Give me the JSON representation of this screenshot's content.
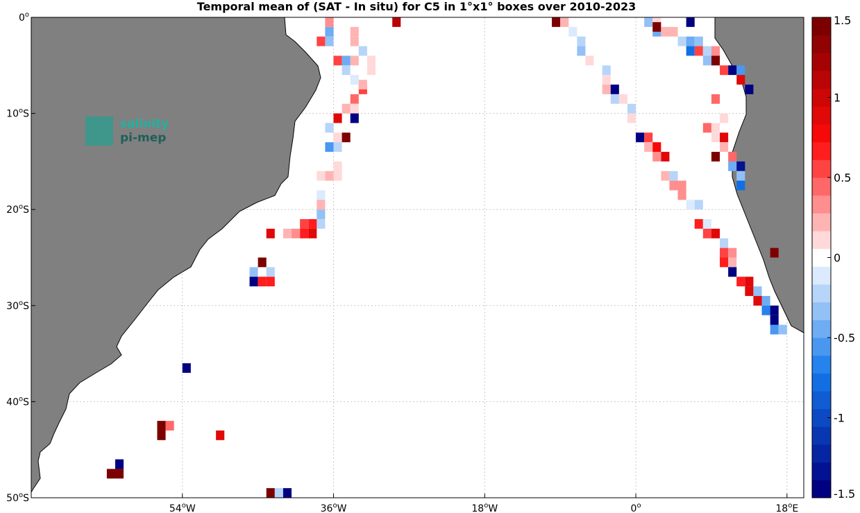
{
  "title": "Temporal mean of (SAT - In situ) for C5 in 1°x1° boxes over 2010-2023",
  "logo": {
    "line1": "salinity",
    "line2": "pi-mep"
  },
  "colors": {
    "land": "#808080",
    "ocean": "#ffffff",
    "grid": "#c8c8c8"
  },
  "chart_data": {
    "type": "heatmap",
    "xlabel": "",
    "ylabel": "",
    "xlim": [
      -72,
      20
    ],
    "ylim": [
      -50,
      0
    ],
    "grid": true,
    "x_ticks": [
      {
        "value": -54,
        "num": "54",
        "unit": "W"
      },
      {
        "value": -36,
        "num": "36",
        "unit": "W"
      },
      {
        "value": -18,
        "num": "18",
        "unit": "W"
      },
      {
        "value": 0,
        "num": "0",
        "unit": ""
      },
      {
        "value": 18,
        "num": "18",
        "unit": "E"
      }
    ],
    "y_ticks": [
      {
        "value": 0,
        "num": "0",
        "unit": ""
      },
      {
        "value": -10,
        "num": "10",
        "unit": "S"
      },
      {
        "value": -20,
        "num": "20",
        "unit": "S"
      },
      {
        "value": -30,
        "num": "30",
        "unit": "S"
      },
      {
        "value": -40,
        "num": "40",
        "unit": "S"
      },
      {
        "value": -50,
        "num": "50",
        "unit": "S"
      }
    ],
    "colorbar": {
      "range": [
        -1.5,
        1.5
      ],
      "ticks": [
        "1.5",
        "1",
        "0.5",
        "0",
        "-0.5",
        "-1",
        "-1.5"
      ],
      "tick_values": [
        1.5,
        1,
        0.5,
        0,
        -0.5,
        -1,
        -1.5
      ]
    },
    "cells": [
      [
        -36.5,
        -0.5,
        0.3
      ],
      [
        -36.5,
        -1.5,
        -0.5
      ],
      [
        -36.5,
        -2.5,
        -0.3
      ],
      [
        -37.5,
        -2.5,
        0.5
      ],
      [
        -33.5,
        -1.5,
        0.2
      ],
      [
        -33.5,
        -2.5,
        0.2
      ],
      [
        -32.5,
        -3.5,
        -0.2
      ],
      [
        -33.5,
        -4.5,
        0.2
      ],
      [
        -31.5,
        -4.5,
        0.1
      ],
      [
        -31.5,
        -5.5,
        0.1
      ],
      [
        -35.5,
        -4.5,
        0.5
      ],
      [
        -34.5,
        -4.5,
        -0.5
      ],
      [
        -34.5,
        -5.5,
        -0.2
      ],
      [
        -33.5,
        -6.5,
        -0.1
      ],
      [
        -32.5,
        -7.5,
        0.5
      ],
      [
        -32.5,
        -7.0,
        0.2
      ],
      [
        -33.5,
        -8.5,
        0.4
      ],
      [
        -33.5,
        -9.5,
        0.1
      ],
      [
        -34.5,
        -9.5,
        0.2
      ],
      [
        -33.5,
        -10.5,
        -1.5
      ],
      [
        -35.5,
        -10.5,
        0.9
      ],
      [
        -36.5,
        -11.5,
        -0.2
      ],
      [
        -35.5,
        -12.5,
        0.1
      ],
      [
        -34.5,
        -12.5,
        1.6
      ],
      [
        -36.5,
        -13.5,
        -0.6
      ],
      [
        -35.5,
        -13.5,
        -0.2
      ],
      [
        -35.5,
        -15.5,
        0.1
      ],
      [
        -35.5,
        -16.5,
        0.1
      ],
      [
        -37.5,
        -16.5,
        0.1
      ],
      [
        -36.5,
        -16.5,
        0.2
      ],
      [
        -37.5,
        -18.5,
        -0.1
      ],
      [
        -37.5,
        -19.5,
        0.2
      ],
      [
        -37.5,
        -20.5,
        -0.3
      ],
      [
        -37.5,
        -21.5,
        -0.2
      ],
      [
        -38.5,
        -21.5,
        0.7
      ],
      [
        -39.5,
        -21.5,
        0.5
      ],
      [
        -38.5,
        -22.5,
        0.9
      ],
      [
        -39.5,
        -22.5,
        0.7
      ],
      [
        -40.5,
        -22.5,
        0.3
      ],
      [
        -41.5,
        -22.5,
        0.2
      ],
      [
        -43.5,
        -22.5,
        0.9
      ],
      [
        -44.5,
        -25.5,
        1.6
      ],
      [
        -45.5,
        -26.5,
        -0.3
      ],
      [
        -43.5,
        -26.5,
        -0.2
      ],
      [
        -45.5,
        -27.5,
        -1.5
      ],
      [
        -44.5,
        -27.5,
        0.7
      ],
      [
        -43.5,
        -27.5,
        0.7
      ],
      [
        -28.5,
        -0.5,
        1.1
      ],
      [
        -9.5,
        -0.5,
        1.6
      ],
      [
        -8.5,
        -0.5,
        0.2
      ],
      [
        -7.5,
        -1.5,
        -0.1
      ],
      [
        -6.5,
        -2.5,
        -0.2
      ],
      [
        -6.5,
        -3.5,
        -0.3
      ],
      [
        -5.5,
        -4.5,
        0.1
      ],
      [
        -3.5,
        -5.5,
        -0.2
      ],
      [
        -3.5,
        -6.5,
        0.1
      ],
      [
        -3.5,
        -7.5,
        0.2
      ],
      [
        -2.5,
        -7.5,
        -1.4
      ],
      [
        -2.5,
        -8.5,
        -0.2
      ],
      [
        -1.5,
        -8.5,
        0.1
      ],
      [
        -0.5,
        -9.5,
        -0.2
      ],
      [
        -0.5,
        -10.5,
        0.1
      ],
      [
        0.5,
        -12.5,
        -1.5
      ],
      [
        1.5,
        -12.5,
        0.5
      ],
      [
        1.5,
        -13.5,
        0.2
      ],
      [
        2.5,
        -13.5,
        0.8
      ],
      [
        3.5,
        -14.5,
        0.9
      ],
      [
        2.5,
        -14.5,
        0.3
      ],
      [
        3.5,
        -16.5,
        0.2
      ],
      [
        4.5,
        -16.5,
        -0.2
      ],
      [
        4.5,
        -17.5,
        0.3
      ],
      [
        5.5,
        -17.5,
        0.3
      ],
      [
        5.5,
        -18.5,
        0.3
      ],
      [
        6.5,
        -19.5,
        -0.1
      ],
      [
        7.5,
        -19.5,
        -0.2
      ],
      [
        7.5,
        -21.5,
        0.7
      ],
      [
        8.5,
        -21.5,
        -0.1
      ],
      [
        8.5,
        -22.5,
        0.5
      ],
      [
        9.5,
        -22.5,
        0.9
      ],
      [
        10.5,
        -23.5,
        -0.2
      ],
      [
        10.5,
        -24.5,
        0.5
      ],
      [
        10.5,
        -25.5,
        0.7
      ],
      [
        11.5,
        -24.5,
        0.3
      ],
      [
        11.5,
        -25.5,
        0.2
      ],
      [
        11.5,
        -26.5,
        -1.4
      ],
      [
        12.5,
        -27.5,
        0.7
      ],
      [
        13.5,
        -27.5,
        0.9
      ],
      [
        13.5,
        -28.5,
        0.9
      ],
      [
        14.5,
        -28.5,
        -0.3
      ],
      [
        14.5,
        -29.5,
        0.9
      ],
      [
        15.5,
        -29.5,
        -0.5
      ],
      [
        15.5,
        -30.5,
        -0.7
      ],
      [
        16.5,
        -30.5,
        -1.5
      ],
      [
        16.5,
        -31.5,
        -1.4
      ],
      [
        16.5,
        -32.5,
        -0.6
      ],
      [
        17.5,
        -32.5,
        -0.3
      ],
      [
        16.5,
        -24.5,
        1.4
      ],
      [
        1.5,
        -0.5,
        -0.3
      ],
      [
        2.5,
        -0.5,
        0.1
      ],
      [
        2.5,
        -1.5,
        -0.5
      ],
      [
        2.5,
        -1.0,
        1.4
      ],
      [
        3.5,
        -1.5,
        0.2
      ],
      [
        4.5,
        -1.5,
        0.2
      ],
      [
        5.5,
        -2.5,
        -0.2
      ],
      [
        6.5,
        -2.5,
        -0.4
      ],
      [
        6.5,
        -3.5,
        -0.8
      ],
      [
        7.5,
        -2.5,
        -0.3
      ],
      [
        7.5,
        -3.5,
        0.5
      ],
      [
        8.5,
        -3.5,
        -0.2
      ],
      [
        8.5,
        -4.5,
        -0.3
      ],
      [
        9.5,
        -3.5,
        0.3
      ],
      [
        9.5,
        -4.5,
        -0.5
      ],
      [
        9.5,
        -4.5,
        1.6
      ],
      [
        10.5,
        -5.5,
        0.5
      ],
      [
        11.5,
        -5.5,
        -1.5
      ],
      [
        12.5,
        -5.5,
        -0.6
      ],
      [
        12.5,
        -6.5,
        0.9
      ],
      [
        13.5,
        -7.5,
        -1.5
      ],
      [
        9.5,
        -8.5,
        0.4
      ],
      [
        10.5,
        -10.5,
        0.1
      ],
      [
        8.5,
        -11.5,
        0.4
      ],
      [
        9.5,
        -11.5,
        0.1
      ],
      [
        10.5,
        -12.5,
        0.9
      ],
      [
        9.5,
        -12.5,
        0.1
      ],
      [
        9.5,
        -14.5,
        1.6
      ],
      [
        10.5,
        -13.5,
        0.2
      ],
      [
        11.5,
        -14.5,
        0.4
      ],
      [
        11.5,
        -15.5,
        -0.4
      ],
      [
        12.5,
        -15.5,
        -1.3
      ],
      [
        12.5,
        -16.5,
        -0.3
      ],
      [
        12.5,
        -17.5,
        -0.8
      ],
      [
        6.5,
        -0.5,
        -1.5
      ],
      [
        -53.5,
        -36.5,
        -1.5
      ],
      [
        -56.5,
        -42.5,
        1.6
      ],
      [
        -55.5,
        -42.5,
        0.4
      ],
      [
        -56.5,
        -43.5,
        1.6
      ],
      [
        -49.5,
        -43.5,
        0.9
      ],
      [
        -61.5,
        -46.5,
        -1.5
      ],
      [
        -62.5,
        -47.5,
        1.4
      ],
      [
        -61.5,
        -47.5,
        1.4
      ],
      [
        -43.5,
        -49.5,
        1.6
      ],
      [
        -42.5,
        -49.5,
        -0.2
      ],
      [
        -41.5,
        -49.5,
        -1.5
      ]
    ]
  }
}
